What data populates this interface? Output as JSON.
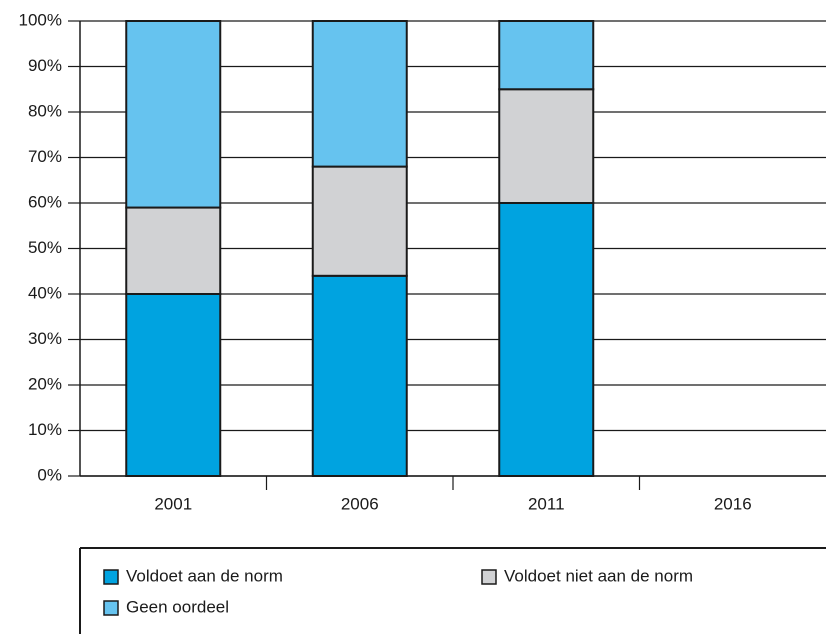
{
  "chart_data": {
    "type": "bar",
    "stacked": true,
    "categories": [
      "2001",
      "2006",
      "2011",
      "2016"
    ],
    "series": [
      {
        "name": "Voldoet aan de norm",
        "color": "#00a3e0",
        "values": [
          40,
          44,
          60,
          null
        ]
      },
      {
        "name": "Voldoet niet aan de norm",
        "color": "#d1d2d4",
        "values": [
          19,
          24,
          25,
          null
        ]
      },
      {
        "name": "Geen oordeel",
        "color": "#66c3ef",
        "values": [
          41,
          32,
          15,
          null
        ]
      }
    ],
    "ylim": [
      0,
      100
    ],
    "yticks": [
      {
        "value": 0,
        "label": "0%"
      },
      {
        "value": 10,
        "label": "10%"
      },
      {
        "value": 20,
        "label": "20%"
      },
      {
        "value": 30,
        "label": "30%"
      },
      {
        "value": 40,
        "label": "40%"
      },
      {
        "value": 50,
        "label": "50%"
      },
      {
        "value": 60,
        "label": "60%"
      },
      {
        "value": 70,
        "label": "70%"
      },
      {
        "value": 80,
        "label": "80%"
      },
      {
        "value": 90,
        "label": "90%"
      },
      {
        "value": 100,
        "label": "100%"
      }
    ],
    "grid": true,
    "legend": "bottom"
  }
}
